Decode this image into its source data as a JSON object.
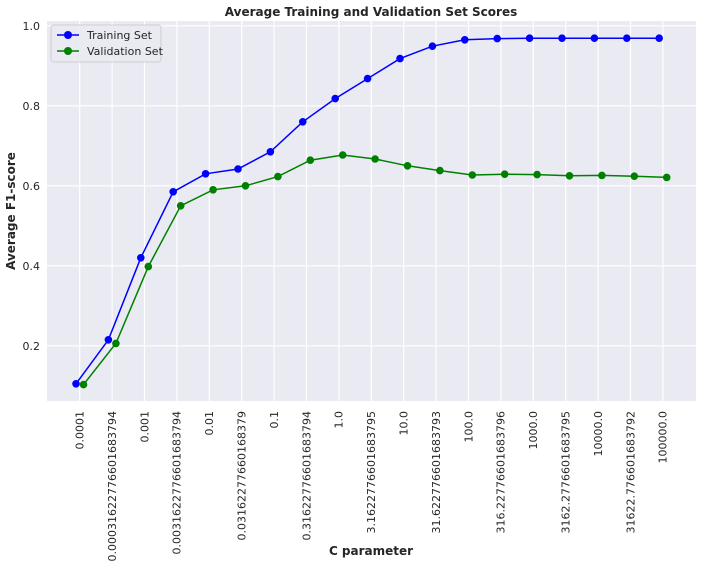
{
  "chart_data": {
    "type": "line",
    "title": "Average Training and Validation Set Scores",
    "xlabel": "C parameter",
    "ylabel": "Average F1-score",
    "categories": [
      "0.0001",
      "0.00031622776601683794",
      "0.001",
      "0.0031622776601683794",
      "0.01",
      "0.03162277660168379",
      "0.1",
      "0.31622776601683794",
      "1.0",
      "3.1622776601683795",
      "10.0",
      "31.622776601683793",
      "100.0",
      "316.22776601683796",
      "1000.0",
      "3162.2776601683795",
      "10000.0",
      "31622.776601683792",
      "100000.0"
    ],
    "series": [
      {
        "name": "Training Set",
        "color": "#0000ff",
        "values": [
          0.105,
          0.215,
          0.42,
          0.585,
          0.63,
          0.642,
          0.685,
          0.76,
          0.818,
          0.868,
          0.918,
          0.949,
          0.965,
          0.968,
          0.969,
          0.969,
          0.969,
          0.969,
          0.969
        ]
      },
      {
        "name": "Validation Set",
        "color": "#008000",
        "values": [
          0.103,
          0.206,
          0.398,
          0.55,
          0.59,
          0.6,
          0.623,
          0.664,
          0.677,
          0.667,
          0.65,
          0.638,
          0.627,
          0.629,
          0.628,
          0.625,
          0.626,
          0.624,
          0.621
        ]
      }
    ],
    "yticks": [
      0.2,
      0.4,
      0.6,
      0.8,
      1.0
    ],
    "ytick_labels": [
      "0.2",
      "0.4",
      "0.6",
      "0.8",
      "1.0"
    ],
    "ylim": [
      0.062,
      1.012
    ],
    "grid": true,
    "legend": "top-left",
    "background": "#eaeaf2",
    "grid_color": "#ffffff"
  }
}
